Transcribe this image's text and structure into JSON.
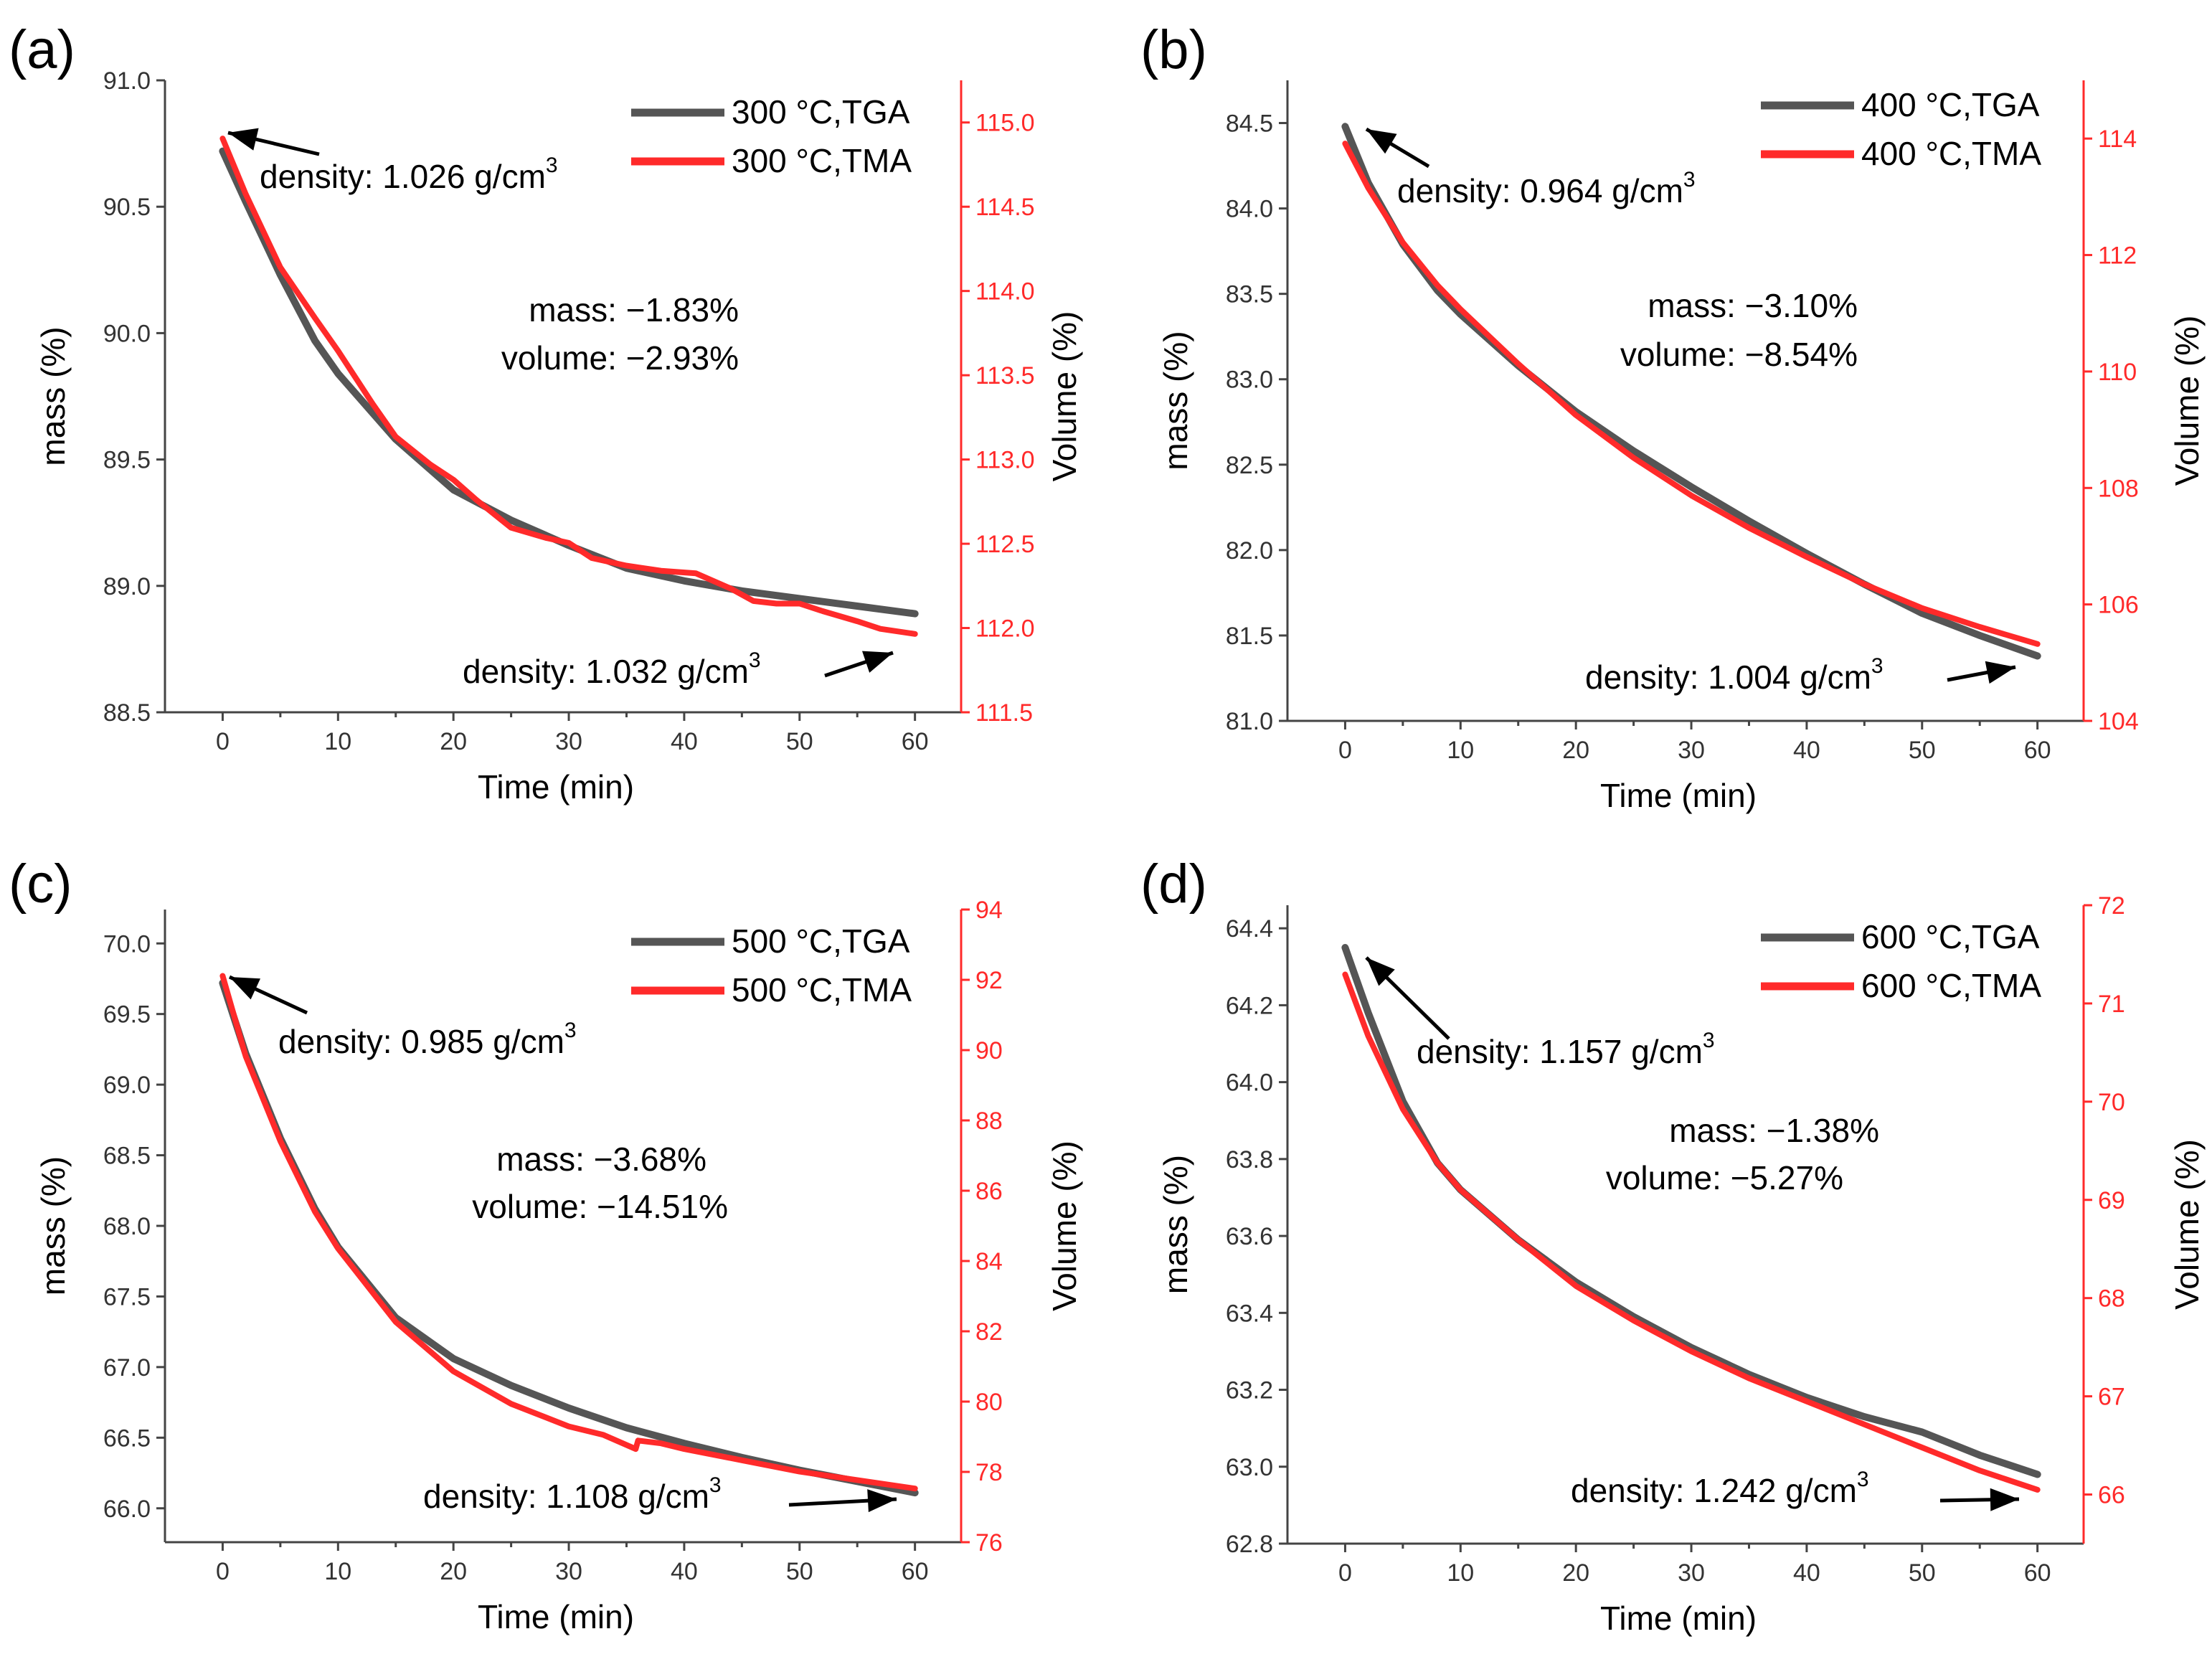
{
  "colors": {
    "tga": "#555555",
    "tma": "#ff2a2a",
    "axis": "#444444",
    "right_axis": "#ff2a2a",
    "text": "#000000"
  },
  "chart_data": [
    {
      "type": "line",
      "panel_label": "(a)",
      "xlabel": "Time (min)",
      "ylabel": "mass (%)",
      "y2label": "Volume (%)",
      "xlim": [
        -5,
        64
      ],
      "ylim": [
        88.5,
        91.0
      ],
      "y2lim": [
        111.5,
        115.25
      ],
      "xticks": [
        0,
        10,
        20,
        30,
        40,
        50,
        60
      ],
      "yticks": [
        "88.5",
        "89.0",
        "89.5",
        "90.0",
        "90.5",
        "91.0"
      ],
      "y2ticks": [
        "111.5",
        "112.0",
        "112.5",
        "113.0",
        "113.5",
        "114.0",
        "114.5",
        "115.0"
      ],
      "series": [
        {
          "name": "300 °C,TGA",
          "axis": "left",
          "x": [
            0,
            2,
            5,
            8,
            10,
            15,
            20,
            25,
            30,
            35,
            40,
            45,
            50,
            55,
            60
          ],
          "y": [
            90.72,
            90.52,
            90.23,
            89.97,
            89.84,
            89.58,
            89.38,
            89.26,
            89.16,
            89.07,
            89.02,
            88.98,
            88.95,
            88.92,
            88.89
          ]
        },
        {
          "name": "300 °C,TMA",
          "axis": "left",
          "x": [
            0,
            2,
            5,
            8,
            10,
            13,
            15,
            18,
            20,
            22,
            25,
            28,
            30,
            32,
            35,
            38,
            41,
            44,
            46,
            48,
            50,
            52,
            55,
            57,
            60
          ],
          "y": [
            90.77,
            90.55,
            90.26,
            90.06,
            89.93,
            89.72,
            89.59,
            89.48,
            89.42,
            89.34,
            89.23,
            89.19,
            89.17,
            89.11,
            89.08,
            89.06,
            89.05,
            88.99,
            88.94,
            88.93,
            88.93,
            88.9,
            88.86,
            88.83,
            88.81
          ]
        }
      ],
      "legend": [
        "300 °C,TGA",
        "300 °C,TMA"
      ],
      "annotations": {
        "start_density": "density: 1.026 g/cm",
        "end_density": "density: 1.032 g/cm",
        "sup": "3",
        "mass": "mass: −1.83%",
        "volume": "volume: −2.93%"
      }
    },
    {
      "type": "line",
      "panel_label": "(b)",
      "xlabel": "Time (min)",
      "ylabel": "mass (%)",
      "y2label": "Volume (%)",
      "xlim": [
        -5,
        64
      ],
      "ylim": [
        81.0,
        84.75
      ],
      "y2lim": [
        104,
        115
      ],
      "xticks": [
        0,
        10,
        20,
        30,
        40,
        50,
        60
      ],
      "yticks": [
        "81.0",
        "81.5",
        "82.0",
        "82.5",
        "83.0",
        "83.5",
        "84.0",
        "84.5"
      ],
      "y2ticks": [
        "104",
        "106",
        "108",
        "110",
        "112",
        "114"
      ],
      "series": [
        {
          "name": "400 °C,TGA",
          "axis": "left",
          "x": [
            0,
            2,
            5,
            8,
            10,
            15,
            20,
            25,
            30,
            35,
            40,
            45,
            50,
            55,
            60
          ],
          "y": [
            84.48,
            84.15,
            83.79,
            83.52,
            83.38,
            83.08,
            82.81,
            82.58,
            82.37,
            82.17,
            81.98,
            81.8,
            81.63,
            81.5,
            81.38
          ]
        },
        {
          "name": "400 °C,TMA",
          "axis": "left",
          "x": [
            0,
            2,
            5,
            8,
            10,
            15,
            20,
            25,
            30,
            35,
            40,
            45,
            50,
            55,
            60
          ],
          "y": [
            84.38,
            84.12,
            83.8,
            83.55,
            83.41,
            83.09,
            82.79,
            82.54,
            82.32,
            82.13,
            81.96,
            81.8,
            81.66,
            81.55,
            81.45
          ]
        }
      ],
      "legend": [
        "400 °C,TGA",
        "400 °C,TMA"
      ],
      "annotations": {
        "start_density": "density: 0.964 g/cm",
        "end_density": "density: 1.004 g/cm",
        "sup": "3",
        "mass": "mass: −3.10%",
        "volume": "volume: −8.54%"
      }
    },
    {
      "type": "line",
      "panel_label": "(c)",
      "xlabel": "Time (min)",
      "ylabel": "mass (%)",
      "y2label": "Volume (%)",
      "xlim": [
        -5,
        64
      ],
      "ylim": [
        65.76,
        70.24
      ],
      "y2lim": [
        76,
        94
      ],
      "xticks": [
        0,
        10,
        20,
        30,
        40,
        50,
        60
      ],
      "yticks": [
        "66.0",
        "66.5",
        "67.0",
        "67.5",
        "68.0",
        "68.5",
        "69.0",
        "69.5",
        "70.0"
      ],
      "y2ticks": [
        "76",
        "78",
        "80",
        "82",
        "84",
        "86",
        "88",
        "90",
        "92",
        "94"
      ],
      "series": [
        {
          "name": "500 °C,TGA",
          "axis": "left",
          "x": [
            0,
            2,
            5,
            8,
            10,
            15,
            20,
            25,
            30,
            35,
            40,
            45,
            50,
            55,
            60
          ],
          "y": [
            69.72,
            69.22,
            68.62,
            68.12,
            67.85,
            67.35,
            67.06,
            66.87,
            66.71,
            66.57,
            66.46,
            66.36,
            66.27,
            66.19,
            66.11
          ]
        },
        {
          "name": "500 °C,TMA",
          "axis": "left",
          "x": [
            0,
            2,
            5,
            8,
            10,
            15,
            20,
            25,
            30,
            33,
            35.8,
            36,
            38,
            40,
            45,
            50,
            55,
            60
          ],
          "y": [
            69.77,
            69.2,
            68.6,
            68.1,
            67.84,
            67.32,
            66.97,
            66.74,
            66.58,
            66.52,
            66.42,
            66.48,
            66.46,
            66.42,
            66.34,
            66.26,
            66.2,
            66.14
          ]
        }
      ],
      "legend": [
        "500 °C,TGA",
        "500 °C,TMA"
      ],
      "annotations": {
        "start_density": "density: 0.985 g/cm",
        "end_density": "density: 1.108 g/cm",
        "sup": "3",
        "mass": "mass: −3.68%",
        "volume": "volume: −14.51%"
      }
    },
    {
      "type": "line",
      "panel_label": "(d)",
      "xlabel": "Time (min)",
      "ylabel": "mass (%)",
      "y2label": "Volume (%)",
      "xlim": [
        -5,
        64
      ],
      "ylim": [
        62.8,
        64.46
      ],
      "y2lim": [
        65.5,
        72
      ],
      "xticks": [
        0,
        10,
        20,
        30,
        40,
        50,
        60
      ],
      "yticks": [
        "62.8",
        "63.0",
        "63.2",
        "63.4",
        "63.6",
        "63.8",
        "64.0",
        "64.2",
        "64.4"
      ],
      "y2ticks": [
        "66",
        "67",
        "68",
        "69",
        "70",
        "71",
        "72"
      ],
      "series": [
        {
          "name": "600 °C,TGA",
          "axis": "left",
          "x": [
            0,
            2,
            5,
            8,
            10,
            15,
            20,
            25,
            30,
            35,
            40,
            45,
            50,
            55,
            60
          ],
          "y": [
            64.35,
            64.18,
            63.95,
            63.79,
            63.72,
            63.59,
            63.48,
            63.39,
            63.31,
            63.24,
            63.18,
            63.13,
            63.09,
            63.03,
            62.98
          ]
        },
        {
          "name": "600 °C,TMA",
          "axis": "left",
          "x": [
            0,
            2,
            5,
            8,
            10,
            15,
            20,
            25,
            30,
            35,
            40,
            45,
            50,
            55,
            60
          ],
          "y": [
            64.28,
            64.12,
            63.93,
            63.79,
            63.72,
            63.59,
            63.47,
            63.38,
            63.3,
            63.23,
            63.17,
            63.11,
            63.05,
            62.99,
            62.94
          ]
        }
      ],
      "legend": [
        "600 °C,TGA",
        "600 °C,TMA"
      ],
      "annotations": {
        "start_density": "density: 1.157 g/cm",
        "end_density": "density: 1.242 g/cm",
        "sup": "3",
        "mass": "mass: −1.38%",
        "volume": "volume: −5.27%"
      }
    }
  ]
}
